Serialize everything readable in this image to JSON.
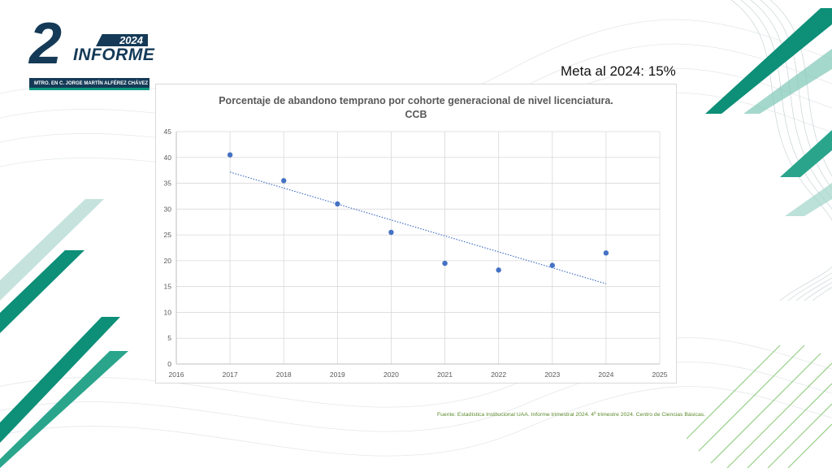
{
  "header": {
    "logo_number": "2",
    "logo_year": "2024",
    "logo_word": "INFORME",
    "logo_subtitle": "MTRO. EN C. JORGE MARTÍN ALFÉREZ CHÁVEZ"
  },
  "goal_text": "Meta al 2024: 15%",
  "source_text": "Fuente: Estadística Institucional UAA. Informe trimestral 2024. 4º trimestre 2024. Centro de Ciencias Básicas.",
  "colors": {
    "brand_navy": "#143a57",
    "brand_teal": "#0d9a7f",
    "point": "#4472c4",
    "source_green": "#5b8a2c"
  },
  "chart_data": {
    "type": "scatter",
    "title": "Porcentaje de abandono temprano por cohorte generacional de nivel licenciatura.",
    "subtitle": "CCB",
    "xlim": [
      2016,
      2025
    ],
    "ylim": [
      0,
      45
    ],
    "x_ticks": [
      2016,
      2017,
      2018,
      2019,
      2020,
      2021,
      2022,
      2023,
      2024,
      2025
    ],
    "y_ticks": [
      0,
      5,
      10,
      15,
      20,
      25,
      30,
      35,
      40,
      45
    ],
    "grid": true,
    "trendline": "linear",
    "series": [
      {
        "color": "#4472c4",
        "points": [
          {
            "x": 2017,
            "y": 40.5
          },
          {
            "x": 2018,
            "y": 35.5
          },
          {
            "x": 2019,
            "y": 31.0
          },
          {
            "x": 2020,
            "y": 25.5
          },
          {
            "x": 2021,
            "y": 19.5
          },
          {
            "x": 2022,
            "y": 18.2
          },
          {
            "x": 2023,
            "y": 19.1
          },
          {
            "x": 2024,
            "y": 21.5
          }
        ]
      }
    ]
  }
}
